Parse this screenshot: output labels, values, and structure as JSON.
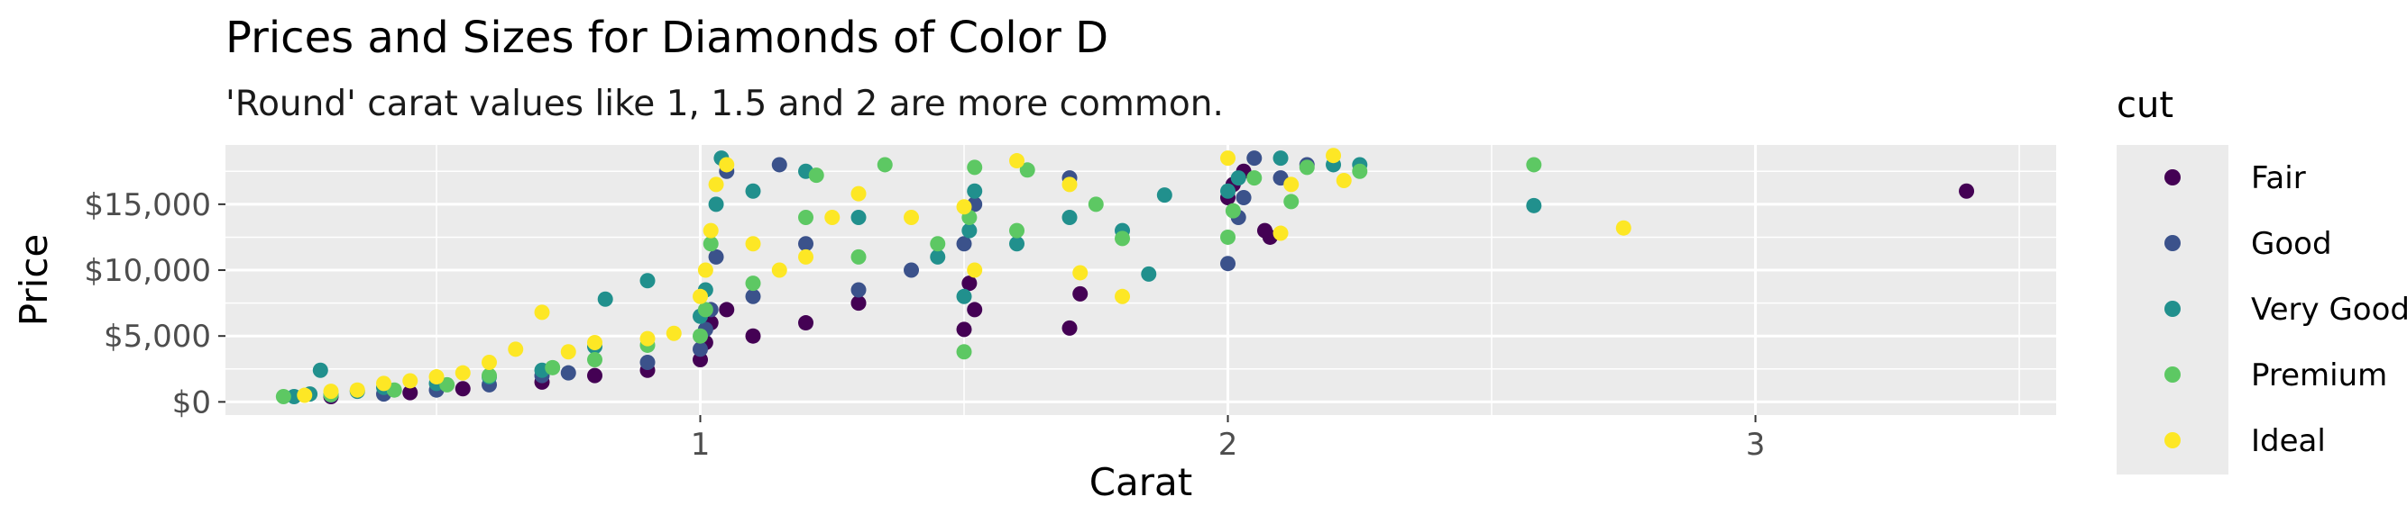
{
  "chart_data": {
    "type": "scatter",
    "title": "Prices and Sizes for Diamonds of Color D",
    "subtitle": "'Round' carat values like 1, 1.5 and 2 are more common.",
    "xlabel": "Carat",
    "ylabel": "Price",
    "xlim": [
      0.1,
      3.57
    ],
    "ylim": [
      -1000,
      19500
    ],
    "x_ticks": [
      1,
      2,
      3
    ],
    "x_tick_labels": [
      "1",
      "2",
      "3"
    ],
    "y_ticks": [
      0,
      5000,
      10000,
      15000
    ],
    "y_tick_labels": [
      "$0",
      "$5,000",
      "$10,000",
      "$15,000"
    ],
    "grid": true,
    "legend_position": "right",
    "legend_title": "cut",
    "series": [
      {
        "name": "Fair",
        "color": "#440154",
        "points": [
          [
            0.3,
            400
          ],
          [
            0.45,
            700
          ],
          [
            0.55,
            1000
          ],
          [
            0.7,
            1500
          ],
          [
            0.8,
            2000
          ],
          [
            0.9,
            2400
          ],
          [
            1.0,
            3200
          ],
          [
            1.01,
            4500
          ],
          [
            1.02,
            6000
          ],
          [
            1.05,
            7000
          ],
          [
            1.1,
            5000
          ],
          [
            1.2,
            6000
          ],
          [
            1.3,
            7500
          ],
          [
            1.5,
            5500
          ],
          [
            1.52,
            7000
          ],
          [
            1.51,
            9000
          ],
          [
            1.7,
            5600
          ],
          [
            1.72,
            8200
          ],
          [
            2.0,
            15500
          ],
          [
            2.01,
            16500
          ],
          [
            2.03,
            17500
          ],
          [
            2.08,
            12500
          ],
          [
            2.07,
            13000
          ],
          [
            3.4,
            16000
          ]
        ]
      },
      {
        "name": "Good",
        "color": "#3b528b",
        "points": [
          [
            0.3,
            500
          ],
          [
            0.4,
            600
          ],
          [
            0.5,
            900
          ],
          [
            0.6,
            1300
          ],
          [
            0.7,
            2000
          ],
          [
            0.75,
            2200
          ],
          [
            0.9,
            3000
          ],
          [
            1.0,
            4000
          ],
          [
            1.01,
            5500
          ],
          [
            1.02,
            7000
          ],
          [
            1.03,
            11000
          ],
          [
            1.05,
            17500
          ],
          [
            1.1,
            8000
          ],
          [
            1.15,
            18000
          ],
          [
            1.2,
            12000
          ],
          [
            1.3,
            8500
          ],
          [
            1.4,
            10000
          ],
          [
            1.5,
            12000
          ],
          [
            1.52,
            15000
          ],
          [
            1.7,
            17000
          ],
          [
            2.0,
            10500
          ],
          [
            2.02,
            14000
          ],
          [
            2.03,
            15500
          ],
          [
            2.05,
            18500
          ],
          [
            2.1,
            17000
          ],
          [
            2.15,
            18000
          ]
        ]
      },
      {
        "name": "Very Good",
        "color": "#21908d",
        "points": [
          [
            0.23,
            400
          ],
          [
            0.26,
            600
          ],
          [
            0.28,
            2400
          ],
          [
            0.35,
            800
          ],
          [
            0.4,
            1100
          ],
          [
            0.5,
            1400
          ],
          [
            0.6,
            1900
          ],
          [
            0.7,
            2400
          ],
          [
            0.8,
            4200
          ],
          [
            0.82,
            7800
          ],
          [
            0.9,
            9200
          ],
          [
            1.0,
            6500
          ],
          [
            1.01,
            8500
          ],
          [
            1.03,
            15000
          ],
          [
            1.04,
            18500
          ],
          [
            1.1,
            16000
          ],
          [
            1.2,
            17500
          ],
          [
            1.3,
            14000
          ],
          [
            1.45,
            11000
          ],
          [
            1.5,
            8000
          ],
          [
            1.51,
            13000
          ],
          [
            1.52,
            16000
          ],
          [
            1.6,
            12000
          ],
          [
            1.7,
            14000
          ],
          [
            1.8,
            13000
          ],
          [
            1.85,
            9700
          ],
          [
            1.88,
            15700
          ],
          [
            2.0,
            16000
          ],
          [
            2.02,
            17000
          ],
          [
            2.1,
            18500
          ],
          [
            2.2,
            18000
          ],
          [
            2.25,
            18000
          ],
          [
            2.58,
            14900
          ]
        ]
      },
      {
        "name": "Premium",
        "color": "#5dc863",
        "points": [
          [
            0.21,
            400
          ],
          [
            0.3,
            550
          ],
          [
            0.42,
            900
          ],
          [
            0.52,
            1300
          ],
          [
            0.6,
            2000
          ],
          [
            0.72,
            2600
          ],
          [
            0.8,
            3200
          ],
          [
            0.9,
            4300
          ],
          [
            1.0,
            5000
          ],
          [
            1.01,
            7000
          ],
          [
            1.02,
            12000
          ],
          [
            1.1,
            9000
          ],
          [
            1.2,
            14000
          ],
          [
            1.22,
            17200
          ],
          [
            1.3,
            11000
          ],
          [
            1.35,
            18000
          ],
          [
            1.45,
            12000
          ],
          [
            1.5,
            3800
          ],
          [
            1.51,
            14000
          ],
          [
            1.52,
            17800
          ],
          [
            1.6,
            13000
          ],
          [
            1.62,
            17600
          ],
          [
            1.75,
            15000
          ],
          [
            1.8,
            12400
          ],
          [
            2.0,
            12500
          ],
          [
            2.01,
            14500
          ],
          [
            2.05,
            17000
          ],
          [
            2.12,
            15200
          ],
          [
            2.15,
            17800
          ],
          [
            2.25,
            17500
          ],
          [
            2.58,
            18000
          ]
        ]
      },
      {
        "name": "Ideal",
        "color": "#fde725",
        "points": [
          [
            0.25,
            500
          ],
          [
            0.3,
            800
          ],
          [
            0.35,
            900
          ],
          [
            0.4,
            1400
          ],
          [
            0.45,
            1600
          ],
          [
            0.5,
            1900
          ],
          [
            0.55,
            2200
          ],
          [
            0.6,
            3000
          ],
          [
            0.65,
            4000
          ],
          [
            0.7,
            6800
          ],
          [
            0.75,
            3800
          ],
          [
            0.8,
            4500
          ],
          [
            0.9,
            4800
          ],
          [
            0.95,
            5200
          ],
          [
            1.0,
            8000
          ],
          [
            1.01,
            10000
          ],
          [
            1.02,
            13000
          ],
          [
            1.03,
            16500
          ],
          [
            1.05,
            18000
          ],
          [
            1.1,
            12000
          ],
          [
            1.15,
            10000
          ],
          [
            1.2,
            11000
          ],
          [
            1.25,
            14000
          ],
          [
            1.3,
            15800
          ],
          [
            1.4,
            14000
          ],
          [
            1.5,
            14800
          ],
          [
            1.52,
            10000
          ],
          [
            1.6,
            18300
          ],
          [
            1.7,
            16500
          ],
          [
            1.72,
            9800
          ],
          [
            1.8,
            8000
          ],
          [
            2.0,
            18500
          ],
          [
            2.1,
            12800
          ],
          [
            2.12,
            16500
          ],
          [
            2.2,
            18700
          ],
          [
            2.22,
            16800
          ],
          [
            2.75,
            13200
          ]
        ]
      }
    ]
  }
}
